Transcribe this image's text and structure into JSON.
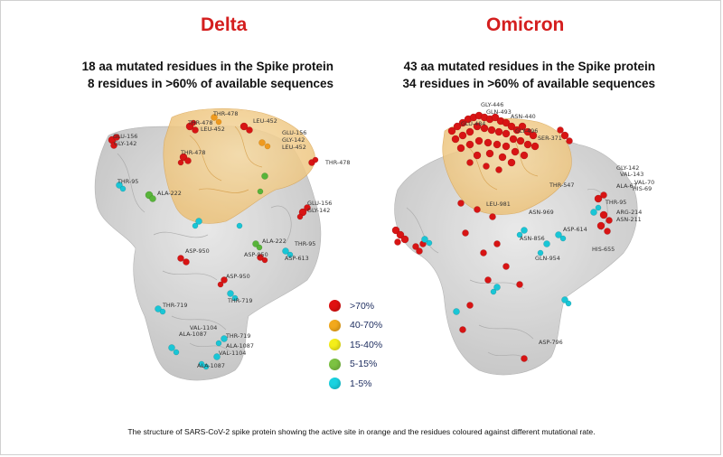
{
  "panels": {
    "delta": {
      "title": "Delta",
      "subtitle_line1": "18 aa mutated residues in the Spike protein",
      "subtitle_line2": "8 residues in >60% of available sequences",
      "residue_labels": [
        "GLU-156",
        "GLY-142",
        "THR-478",
        "LEU-452",
        "THR-478",
        "LEU-452",
        "GLU-156",
        "GLY-142",
        "LEU-452",
        "THR-478",
        "THR-95",
        "ALA-222",
        "GLU-156",
        "GLY-142",
        "ALA-222",
        "THR-95",
        "ASP-950",
        "ASP-950",
        "ASP-613",
        "ASP-950",
        "THR-719",
        "THR-719",
        "VAL-1104",
        "ALA-1087",
        "THR-719",
        "ALA-1087",
        "VAL-1104",
        "ALA-1087"
      ]
    },
    "omicron": {
      "title": "Omicron",
      "subtitle_line1": "43 aa mutated residues in the Spike protein",
      "subtitle_line2": "34 residues in >60% of available sequences",
      "residue_labels": [
        "GLY-446",
        "GLN-493",
        "ASN-440",
        "GLU-484",
        "GLY-496",
        "SER-371",
        "THR-547",
        "GLY-142",
        "VAL-143",
        "VAL-70",
        "ALA-67",
        "HIS-69",
        "THR-95",
        "ARG-214",
        "ASN-211",
        "ASN-969",
        "ASN-856",
        "ASP-614",
        "ASP-796",
        "GLN-954",
        "HIS-655",
        "LEU-981"
      ]
    }
  },
  "legend": [
    {
      "label": ">70%",
      "color": "#e01010"
    },
    {
      "label": "40-70%",
      "color": "#f2a91c"
    },
    {
      "label": "15-40%",
      "color": "#f4ee1a"
    },
    {
      "label": "5-15%",
      "color": "#7cc242"
    },
    {
      "label": "1-5%",
      "color": "#19d2e0"
    }
  ],
  "caption": "The structure of SARS-CoV-2 spike protein showing the active site in orange and the residues coloured against different mutational rate."
}
